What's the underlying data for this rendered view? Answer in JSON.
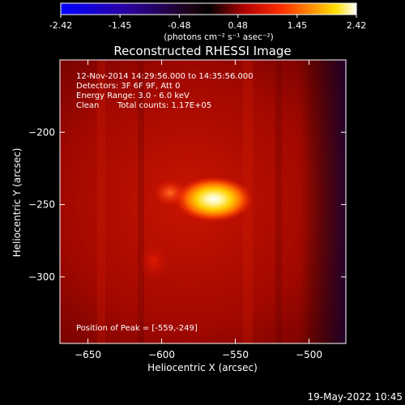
{
  "colorbar": {
    "ticks": [
      "-2.42",
      "-1.45",
      "-0.48",
      "0.48",
      "1.45",
      "2.42"
    ],
    "units_label": "(photons cm⁻² s⁻¹ asec⁻²)",
    "range": [
      -2.42,
      2.42
    ],
    "colormap": "red-temperature (blue-black-red-yellow-white)"
  },
  "annotations": {
    "time_range": "12-Nov-2014 14:29:56.000 to 14:35:56.000",
    "detectors": "Detectors: 3F 6F 9F, Att 0",
    "energy": "Energy Range: 3.0 - 6.0 keV",
    "clean_label": "Clean",
    "total_counts": "Total counts: 1.17E+05",
    "peak": "Position of Peak = [-559,-249]"
  },
  "footer": {
    "timestamp": "19-May-2022 10:45"
  },
  "chart_data": {
    "type": "heatmap",
    "title": "Reconstructed RHESSI Image",
    "xlabel": "Heliocentric X (arcsec)",
    "ylabel": "Heliocentric Y (arcsec)",
    "xlim": [
      -669,
      -475
    ],
    "ylim": [
      -346,
      -150
    ],
    "xticks": [
      -650,
      -600,
      -550,
      -500
    ],
    "xtick_labels": [
      "−650",
      "−600",
      "−550",
      "−500"
    ],
    "yticks": [
      -200,
      -250,
      -300
    ],
    "ytick_labels": [
      "−200",
      "−250",
      "−300"
    ],
    "peak_position": [
      -559,
      -249
    ],
    "sources": [
      {
        "x": -559,
        "y": -249,
        "intensity": 1.0
      },
      {
        "x": -589,
        "y": -243,
        "intensity": 0.4
      },
      {
        "x": -605,
        "y": -290,
        "intensity": 0.15
      }
    ],
    "grid": false
  }
}
